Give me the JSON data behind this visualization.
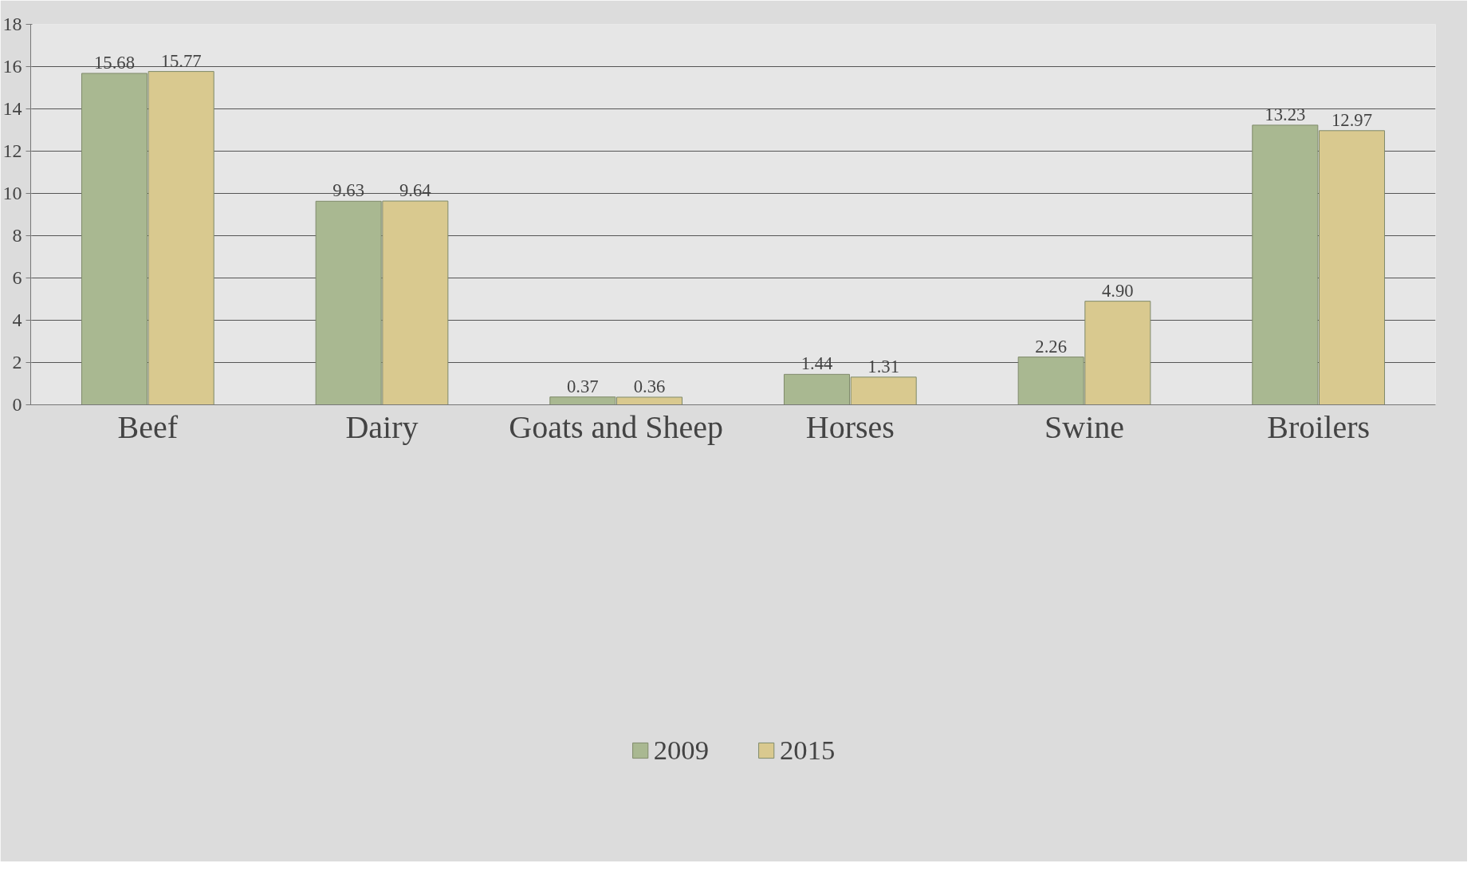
{
  "chart_data": {
    "type": "bar",
    "categories": [
      "Beef",
      "Dairy",
      "Goats and Sheep",
      "Horses",
      "Swine",
      "Broilers"
    ],
    "series": [
      {
        "name": "2009",
        "color": "#a9b891",
        "values": [
          15.68,
          9.63,
          0.37,
          1.44,
          2.26,
          13.23
        ]
      },
      {
        "name": "2015",
        "color": "#d9c98f",
        "values": [
          15.77,
          9.64,
          0.36,
          1.31,
          4.9,
          12.97
        ]
      }
    ],
    "value_labels": [
      [
        "15.68",
        "9.63",
        "0.37",
        "1.44",
        "2.26",
        "13.23"
      ],
      [
        "15.77",
        "9.64",
        "0.36",
        "1.31",
        "4.90",
        "12.97"
      ]
    ],
    "ylim": [
      0,
      18
    ],
    "yticks": [
      0,
      2,
      4,
      6,
      8,
      10,
      12,
      14,
      16,
      18
    ],
    "grid": "y",
    "legend": "bottom"
  }
}
